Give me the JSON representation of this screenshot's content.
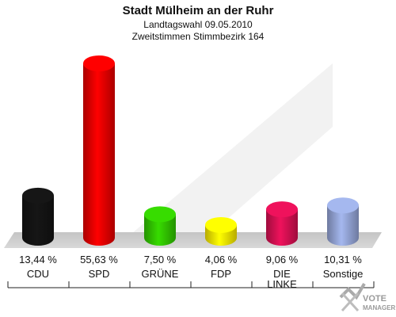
{
  "chart_data": {
    "type": "bar",
    "title": "Stadt Mülheim an der Ruhr",
    "subtitle_lines": [
      "Landtagswahl 09.05.2010",
      "Zweitstimmen Stimmbezirk 164"
    ],
    "categories": [
      [
        "CDU"
      ],
      [
        "SPD"
      ],
      [
        "GRÜNE"
      ],
      [
        "FDP"
      ],
      [
        "DIE",
        "LINKE"
      ],
      [
        "Sonstige"
      ]
    ],
    "values": [
      13.44,
      55.63,
      7.5,
      4.06,
      9.06,
      10.31
    ],
    "value_labels": [
      "13,44 %",
      "55,63 %",
      "7,50 %",
      "4,06 %",
      "9,06 %",
      "10,31 %"
    ],
    "colors": [
      "#141414",
      "#ee0000",
      "#33cc00",
      "#ffee00",
      "#dd1155",
      "#99aadd"
    ],
    "xlabel": "",
    "ylabel": "",
    "grid": false,
    "legend": "none"
  },
  "watermark": {
    "line1": "VOTE",
    "line2": "MANAGER",
    "icon": "checkmark-x-icon"
  }
}
